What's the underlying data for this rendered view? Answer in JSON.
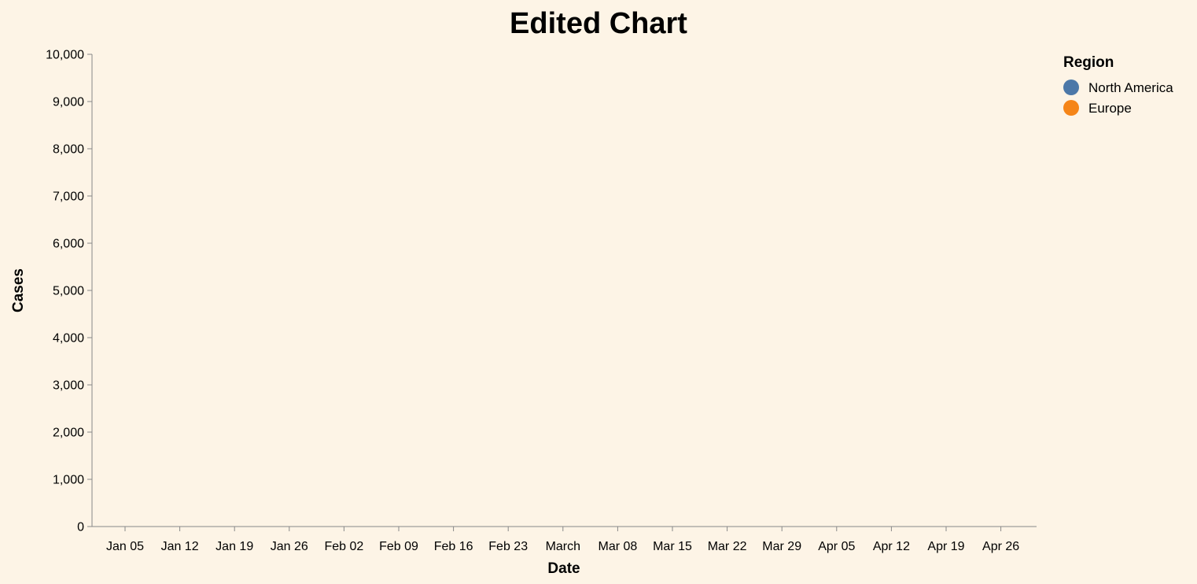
{
  "chart_data": {
    "type": "line",
    "title": "Edited Chart",
    "xlabel": "Date",
    "ylabel": "Cases",
    "ylim": [
      0,
      10000
    ],
    "y_ticks": [
      "0",
      "1,000",
      "2,000",
      "3,000",
      "4,000",
      "5,000",
      "6,000",
      "7,000",
      "8,000",
      "9,000",
      "10,000"
    ],
    "x_ticks": [
      "Jan 05",
      "Jan 12",
      "Jan 19",
      "Jan 26",
      "Feb 02",
      "Feb 09",
      "Feb 16",
      "Feb 23",
      "March",
      "Mar 08",
      "Mar 15",
      "Mar 22",
      "Mar 29",
      "Apr 05",
      "Apr 12",
      "Apr 19",
      "Apr 26"
    ],
    "grid": false,
    "legend": {
      "title": "Region",
      "placement": "top-right",
      "entries": [
        {
          "name": "North America",
          "color": "#4c78a8"
        },
        {
          "name": "Europe",
          "color": "#f58518"
        }
      ]
    },
    "series": [
      {
        "name": "North America",
        "values": []
      },
      {
        "name": "Europe",
        "values": []
      }
    ]
  },
  "colors": {
    "background": "#fdf4e6",
    "axis": "#888888",
    "text": "#000000"
  }
}
